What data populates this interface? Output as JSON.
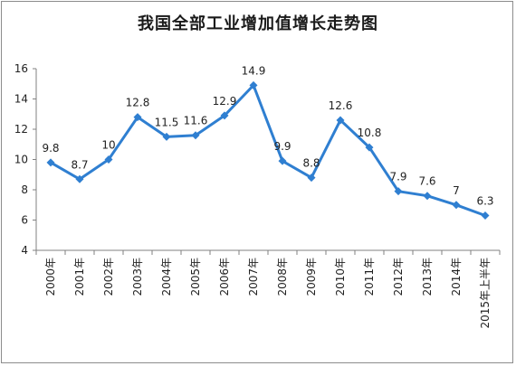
{
  "chart_data": {
    "type": "line",
    "title": "我国全部工业增加值增长走势图",
    "categories": [
      "2000年",
      "2001年",
      "2002年",
      "2003年",
      "2004年",
      "2005年",
      "2006年",
      "2007年",
      "2008年",
      "2009年",
      "2010年",
      "2011年",
      "2012年",
      "2013年",
      "2014年",
      "2015年上半年"
    ],
    "values": [
      9.8,
      8.7,
      10,
      12.8,
      11.5,
      11.6,
      12.9,
      14.9,
      9.9,
      8.8,
      12.6,
      10.8,
      7.9,
      7.6,
      7,
      6.3
    ],
    "value_labels": [
      "9.8",
      "8.7",
      "10",
      "12.8",
      "11.5",
      "11.6",
      "12.9",
      "14.9",
      "9.9",
      "8.8",
      "12.6",
      "10.8",
      "7.9",
      "7.6",
      "7",
      "6.3"
    ],
    "ylim": [
      4,
      16
    ],
    "yticks": [
      4,
      6,
      8,
      10,
      12,
      14,
      16
    ],
    "xlabel": "",
    "ylabel": "",
    "grid": false,
    "legend": "none",
    "line_color": "#2f7fd1"
  }
}
